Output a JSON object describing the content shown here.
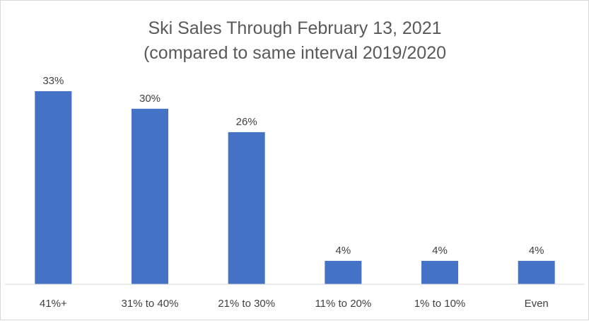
{
  "chart_data": {
    "type": "bar",
    "title": "Ski Sales Through February 13, 2021",
    "subtitle": "(compared to same interval 2019/2020",
    "categories": [
      "41%+",
      "31% to 40%",
      "21% to 30%",
      "11% to 20%",
      "1% to 10%",
      "Even"
    ],
    "values": [
      33,
      30,
      26,
      4,
      4,
      4
    ],
    "data_labels": [
      "33%",
      "30%",
      "26%",
      "4%",
      "4%",
      "4%"
    ],
    "ylim": [
      0,
      33
    ],
    "grid": false,
    "legend": "none",
    "bar_color": "#4472c4",
    "axis_color": "#d9d9d9"
  }
}
